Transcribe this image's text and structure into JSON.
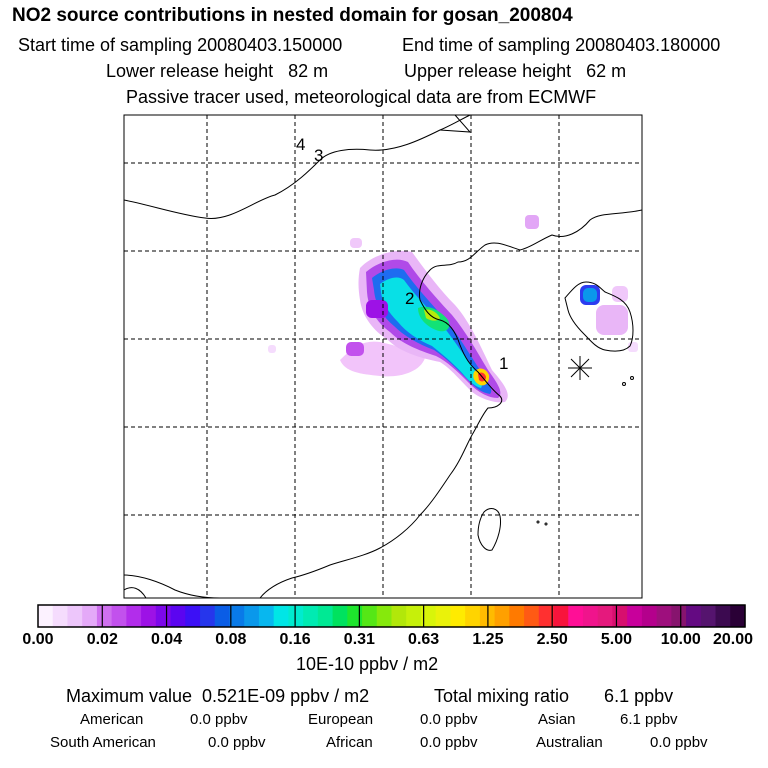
{
  "header": {
    "title": "NO2 source contributions in nested domain for gosan_200804",
    "start_time": "Start time of sampling 20080403.150000",
    "end_time": "End time of sampling 20080403.180000",
    "lower_release": "Lower release height   82 m",
    "upper_release": "Upper release height   62 m",
    "note": "Passive tracer used, meteorological data are from ECMWF"
  },
  "map": {
    "markers": [
      {
        "label": "1",
        "lon": 129.0,
        "lat": 32.0
      },
      {
        "label": "2",
        "lon": 124.5,
        "lat": 35.6
      },
      {
        "label": "3",
        "lon": 120.0,
        "lat": 42.4
      },
      {
        "label": "4",
        "lon": 119.5,
        "lat": 42.6
      }
    ],
    "receptor": {
      "name": "gosan",
      "symbol": "asterisk"
    }
  },
  "colorbar": {
    "tick_labels": [
      "0.00",
      "0.02",
      "0.04",
      "0.08",
      "0.16",
      "0.31",
      "0.63",
      "1.25",
      "2.50",
      "5.00",
      "10.00",
      "20.00"
    ],
    "units": "10E-10 ppbv / m2",
    "colors": [
      "#fcf2ff",
      "#f5dcfd",
      "#edc6fb",
      "#e4a9f8",
      "#cf70ef",
      "#c251ed",
      "#b22deb",
      "#9d12e6",
      "#7d08ea",
      "#5b05f0",
      "#3c10f6",
      "#2636ec",
      "#0a5de6",
      "#097ae8",
      "#0a98eb",
      "#08b7ef",
      "#00e6e6",
      "#00ebcf",
      "#00ebb2",
      "#00e994",
      "#00e25f",
      "#1ee62d",
      "#55e716",
      "#86e90c",
      "#b2e70a",
      "#c6f00a",
      "#d8f50a",
      "#eaf20a",
      "#ffeb00",
      "#ffd400",
      "#ffbb00",
      "#ffa000",
      "#ff7a00",
      "#ff5a14",
      "#ff3030",
      "#f8143c",
      "#ff0f96",
      "#f0148c",
      "#e5197d",
      "#d70f6e",
      "#c8009b",
      "#b4008c",
      "#9e0f7d",
      "#87146e",
      "#640a82",
      "#55146e",
      "#3c0a50",
      "#2a0036"
    ]
  },
  "stats": {
    "max_value": "Maximum value  0.521E-09 ppbv / m2",
    "total_mixing": "Total mixing ratio       6.1 ppbv",
    "regions": [
      {
        "name": "American",
        "value": "0.0 ppbv"
      },
      {
        "name": "European",
        "value": "0.0 ppbv"
      },
      {
        "name": "Asian",
        "value": "6.1 ppbv"
      },
      {
        "name": "South American",
        "value": "0.0 ppbv"
      },
      {
        "name": "African",
        "value": "0.0 ppbv"
      },
      {
        "name": "Australian",
        "value": "0.0 ppbv"
      }
    ]
  }
}
